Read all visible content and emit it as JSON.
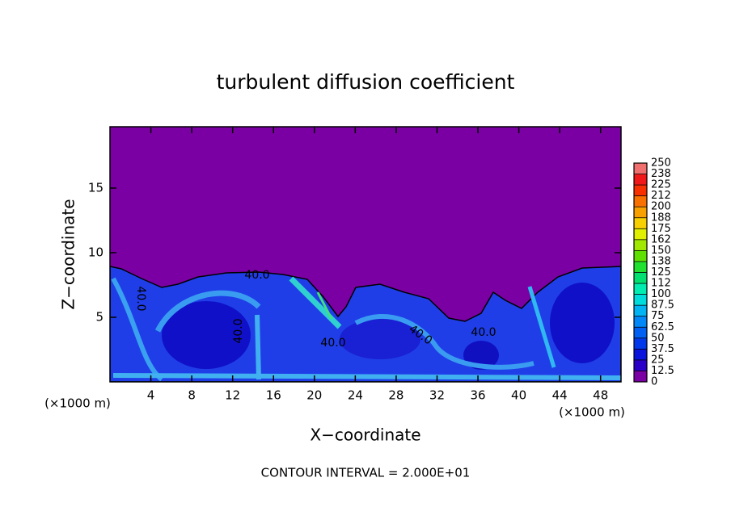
{
  "chart_data": {
    "type": "contour",
    "title": "turbulent diffusion coefficient",
    "x_label": "X−coordinate",
    "y_label": "Z−coordinate",
    "x_unit_label": "(×1000 m)",
    "y_unit_label": "(×1000 m)",
    "footer": "CONTOUR INTERVAL = 2.000E+01",
    "xlim": [
      0,
      50
    ],
    "xticks": [
      4,
      8,
      12,
      16,
      20,
      24,
      28,
      32,
      36,
      40,
      44,
      48
    ],
    "ylim": [
      0,
      19.75
    ],
    "yticks": [
      5,
      10,
      15
    ],
    "contour_labels": [
      "40.0",
      "40.0",
      "40.0",
      "40.0",
      "40.0",
      "40.0"
    ],
    "clim": [
      0,
      250
    ],
    "cticks": [
      0,
      12.5,
      25,
      37.5,
      50,
      62.5,
      75,
      87.5,
      100,
      {
        "value": 112.5,
        "label": "112"
      },
      125,
      {
        "value": 137.5,
        "label": "138"
      },
      150,
      {
        "value": 162.5,
        "label": "162"
      },
      175,
      {
        "value": 187.5,
        "label": "188"
      },
      200,
      {
        "value": 212.5,
        "label": "212"
      },
      225,
      {
        "value": 237.5,
        "label": "238"
      },
      250
    ],
    "colors": [
      "#7b00a3",
      "#2a00c8",
      "#0a14dc",
      "#0038ec",
      "#0060f4",
      "#0088f8",
      "#00b4f4",
      "#00dcdc",
      "#00ecb0",
      "#00e070",
      "#20e030",
      "#60e000",
      "#a0e800",
      "#e0f000",
      "#f8d000",
      "#f8a000",
      "#f87000",
      "#f83000",
      "#f01818",
      "#f07070"
    ]
  }
}
